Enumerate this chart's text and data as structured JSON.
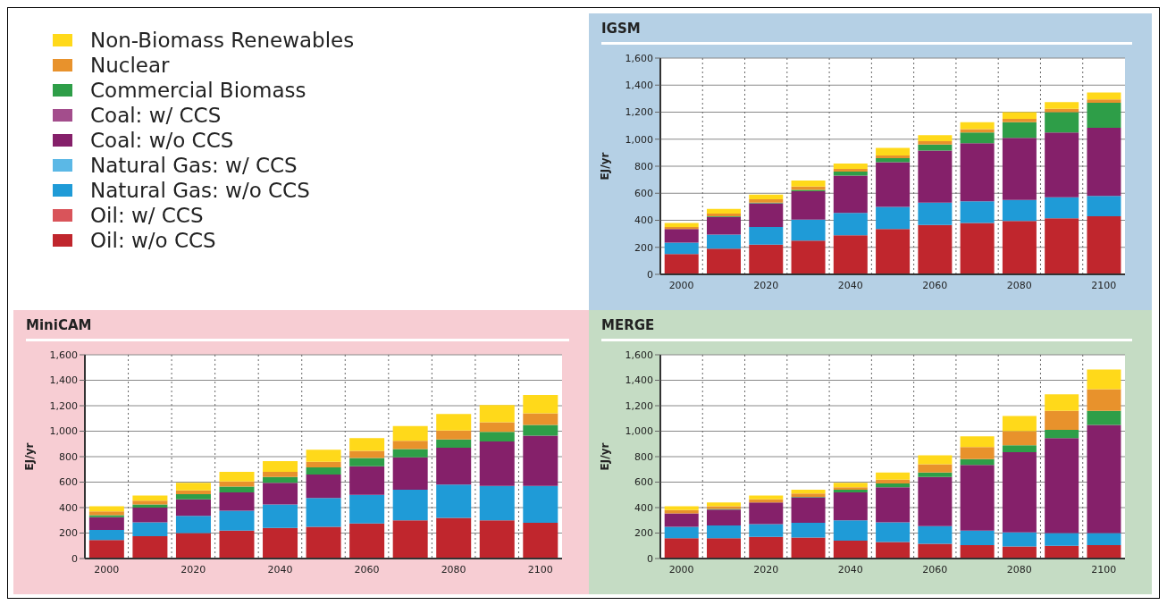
{
  "chart_data": [
    {
      "type": "bar",
      "title": "IGSM",
      "ylabel": "EJ/yr",
      "stacked": true,
      "grid": true,
      "legend": "left",
      "categories": [
        "2000",
        null,
        "2020",
        null,
        "2040",
        null,
        "2060",
        null,
        "2080",
        null,
        "2100"
      ],
      "ylim": [
        0,
        1600
      ],
      "yticks": [
        0,
        200,
        400,
        600,
        800,
        {
          "value": 1000,
          "label": "1,000"
        },
        {
          "value": 1200,
          "label": "1,200"
        },
        {
          "value": 1400,
          "label": "1,400"
        },
        {
          "value": 1600,
          "label": "1,600"
        }
      ],
      "series": [
        {
          "name": "Oil: w/o CCS",
          "color": "#c0262d",
          "values": [
            150,
            190,
            220,
            250,
            290,
            335,
            365,
            380,
            395,
            415,
            430
          ]
        },
        {
          "name": "Oil: w/ CCS",
          "color": "#d9545a",
          "values": [
            0,
            0,
            0,
            0,
            0,
            0,
            0,
            0,
            0,
            0,
            0
          ]
        },
        {
          "name": "Natural Gas: w/o CCS",
          "color": "#1f9bd7",
          "values": [
            85,
            105,
            130,
            155,
            165,
            165,
            165,
            160,
            155,
            155,
            150
          ]
        },
        {
          "name": "Natural Gas: w/ CCS",
          "color": "#5bb8e6",
          "values": [
            0,
            0,
            0,
            0,
            0,
            0,
            0,
            0,
            0,
            0,
            0
          ]
        },
        {
          "name": "Coal: w/o CCS",
          "color": "#85206a",
          "values": [
            100,
            130,
            175,
            210,
            275,
            330,
            385,
            430,
            460,
            480,
            505
          ]
        },
        {
          "name": "Coal: w/ CCS",
          "color": "#a34d8c",
          "values": [
            0,
            0,
            0,
            0,
            0,
            0,
            0,
            0,
            0,
            0,
            0
          ]
        },
        {
          "name": "Commercial Biomass",
          "color": "#2e9e48",
          "values": [
            null,
            5,
            5,
            10,
            30,
            30,
            45,
            80,
            115,
            150,
            185
          ]
        },
        {
          "name": "Nuclear",
          "color": "#e8922c",
          "values": [
            15,
            20,
            25,
            25,
            20,
            20,
            25,
            25,
            25,
            25,
            25
          ]
        },
        {
          "name": "Non-Biomass Renewables",
          "color": "#ffd91a",
          "values": [
            30,
            35,
            35,
            45,
            40,
            55,
            45,
            50,
            50,
            50,
            50
          ]
        }
      ]
    },
    {
      "type": "bar",
      "title": "MiniCAM",
      "ylabel": "EJ/yr",
      "stacked": true,
      "grid": true,
      "categories": [
        "2000",
        null,
        "2020",
        null,
        "2040",
        null,
        "2060",
        null,
        "2080",
        null,
        "2100"
      ],
      "ylim": [
        0,
        1600
      ],
      "yticks": [
        0,
        200,
        400,
        600,
        800,
        {
          "value": 1000,
          "label": "1,000"
        },
        {
          "value": 1200,
          "label": "1,200"
        },
        {
          "value": 1400,
          "label": "1,400"
        },
        {
          "value": 1600,
          "label": "1,600"
        }
      ],
      "series": [
        {
          "color": "#c0262d",
          "values": [
            145,
            175,
            200,
            220,
            240,
            250,
            275,
            300,
            320,
            300,
            280
          ]
        },
        {
          "color": "#d9545a",
          "values": [
            0,
            0,
            0,
            0,
            0,
            0,
            0,
            0,
            0,
            0,
            0
          ]
        },
        {
          "color": "#1f9bd7",
          "values": [
            80,
            110,
            135,
            155,
            185,
            225,
            225,
            240,
            260,
            270,
            290
          ]
        },
        {
          "color": "#5bb8e6",
          "values": [
            0,
            0,
            0,
            0,
            0,
            0,
            0,
            0,
            0,
            0,
            0
          ]
        },
        {
          "color": "#85206a",
          "values": [
            100,
            115,
            130,
            145,
            170,
            185,
            225,
            255,
            290,
            350,
            395
          ]
        },
        {
          "color": "#a34d8c",
          "values": [
            0,
            0,
            0,
            0,
            0,
            0,
            0,
            0,
            0,
            0,
            0
          ]
        },
        {
          "color": "#2e9e48",
          "values": [
            15,
            25,
            40,
            45,
            45,
            55,
            65,
            65,
            65,
            75,
            85
          ]
        },
        {
          "color": "#e8922c",
          "values": [
            30,
            30,
            30,
            40,
            40,
            45,
            55,
            65,
            70,
            75,
            90
          ]
        },
        {
          "color": "#ffd91a",
          "values": [
            40,
            40,
            60,
            75,
            85,
            95,
            100,
            115,
            130,
            135,
            145
          ]
        }
      ]
    },
    {
      "type": "bar",
      "title": "MERGE",
      "ylabel": "EJ/yr",
      "stacked": true,
      "grid": true,
      "categories": [
        "2000",
        null,
        "2020",
        null,
        "2040",
        null,
        "2060",
        null,
        "2080",
        null,
        "2100"
      ],
      "ylim": [
        0,
        1600
      ],
      "yticks": [
        0,
        200,
        400,
        600,
        800,
        {
          "value": 1000,
          "label": "1,000"
        },
        {
          "value": 1200,
          "label": "1,200"
        },
        {
          "value": 1400,
          "label": "1,400"
        },
        {
          "value": 1600,
          "label": "1,600"
        }
      ],
      "series": [
        {
          "color": "#c0262d",
          "values": [
            160,
            160,
            170,
            165,
            140,
            130,
            115,
            105,
            95,
            100,
            105
          ]
        },
        {
          "color": "#d9545a",
          "values": [
            0,
            0,
            0,
            0,
            0,
            0,
            0,
            0,
            0,
            0,
            0
          ]
        },
        {
          "color": "#1f9bd7",
          "values": [
            90,
            100,
            100,
            115,
            160,
            155,
            140,
            115,
            110,
            100,
            95
          ]
        },
        {
          "color": "#5bb8e6",
          "values": [
            0,
            0,
            0,
            0,
            0,
            0,
            0,
            0,
            0,
            0,
            0
          ]
        },
        {
          "color": "#85206a",
          "values": [
            105,
            125,
            170,
            200,
            220,
            275,
            385,
            515,
            630,
            745,
            850
          ]
        },
        {
          "color": "#a34d8c",
          "values": [
            0,
            0,
            0,
            0,
            0,
            0,
            0,
            0,
            0,
            0,
            0
          ]
        },
        {
          "color": "#2e9e48",
          "values": [
            null,
            5,
            null,
            5,
            20,
            30,
            35,
            45,
            55,
            65,
            110
          ]
        },
        {
          "color": "#e8922c",
          "values": [
            25,
            20,
            25,
            25,
            20,
            30,
            65,
            95,
            110,
            150,
            170
          ]
        },
        {
          "color": "#ffd91a",
          "values": [
            30,
            30,
            30,
            30,
            35,
            55,
            70,
            85,
            120,
            130,
            155
          ]
        }
      ]
    }
  ]
}
